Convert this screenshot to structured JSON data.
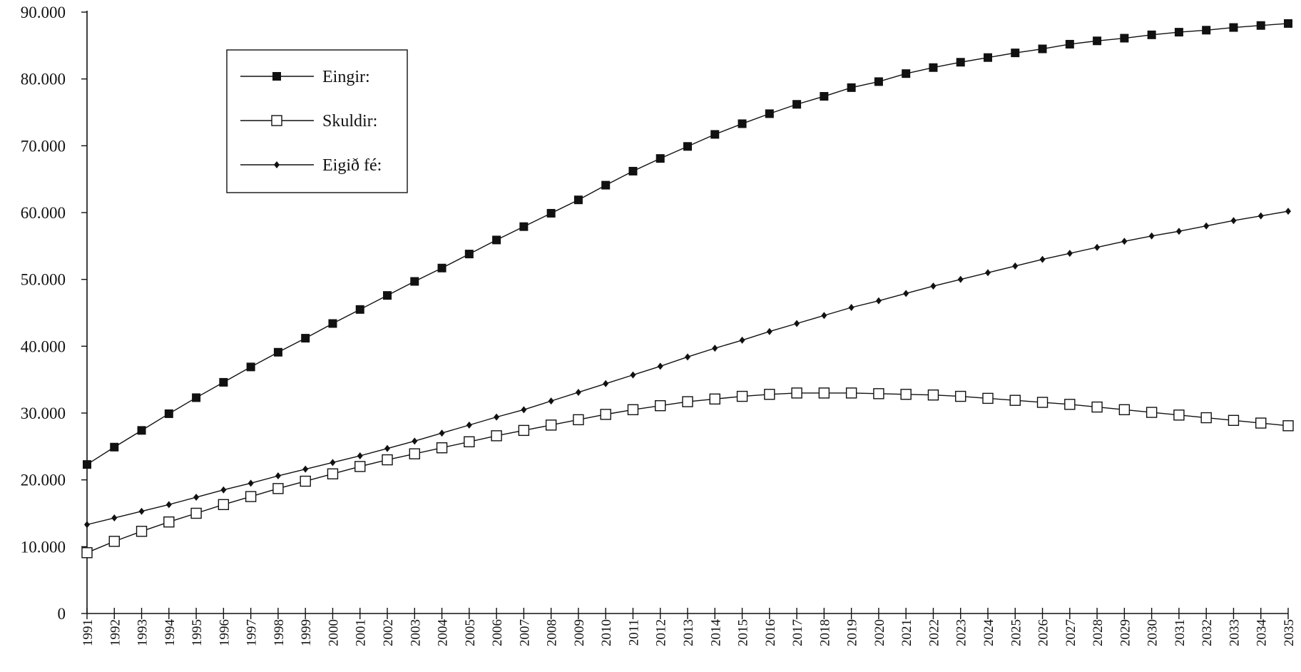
{
  "chart_data": {
    "type": "line",
    "x": [
      1991,
      1992,
      1993,
      1994,
      1995,
      1996,
      1997,
      1998,
      1999,
      2000,
      2001,
      2002,
      2003,
      2004,
      2005,
      2006,
      2007,
      2008,
      2009,
      2010,
      2011,
      2012,
      2013,
      2014,
      2015,
      2016,
      2017,
      2018,
      2019,
      2020,
      2021,
      2022,
      2023,
      2024,
      2025,
      2026,
      2027,
      2028,
      2029,
      2030,
      2031,
      2032,
      2033,
      2034,
      2035
    ],
    "ylim": [
      0,
      90000
    ],
    "y_ticks": [
      "0",
      "10.000",
      "20.000",
      "30.000",
      "40.000",
      "50.000",
      "60.000",
      "70.000",
      "80.000",
      "90.000"
    ],
    "y_tick_values": [
      0,
      10000,
      20000,
      30000,
      40000,
      50000,
      60000,
      70000,
      80000,
      90000
    ],
    "grid": false,
    "legend_position": "top-left",
    "series": [
      {
        "name": "Eingir:",
        "marker": "filled-square",
        "values": [
          22300,
          24900,
          27400,
          29900,
          32300,
          34600,
          36900,
          39100,
          41200,
          43400,
          45500,
          47600,
          49700,
          51700,
          53800,
          55900,
          57900,
          59900,
          61900,
          64100,
          66200,
          68100,
          69900,
          71700,
          73300,
          74800,
          76200,
          77400,
          78700,
          79600,
          80800,
          81700,
          82500,
          83200,
          83900,
          84500,
          85200,
          85700,
          86100,
          86600,
          87000,
          87300,
          87700,
          88000,
          88300
        ],
        "color": "#111111"
      },
      {
        "name": "Skuldir:",
        "marker": "open-square",
        "values": [
          9100,
          10800,
          12300,
          13700,
          15000,
          16300,
          17500,
          18700,
          19800,
          20900,
          22000,
          23000,
          23900,
          24800,
          25700,
          26600,
          27400,
          28200,
          29000,
          29800,
          30500,
          31100,
          31700,
          32100,
          32500,
          32800,
          33000,
          33000,
          33000,
          32900,
          32800,
          32700,
          32500,
          32200,
          31900,
          31600,
          31300,
          30900,
          30500,
          30100,
          29700,
          29300,
          28900,
          28500,
          28100
        ],
        "color": "#111111"
      },
      {
        "name": "Eigið fé:",
        "marker": "filled-diamond",
        "values": [
          13300,
          14300,
          15300,
          16300,
          17400,
          18500,
          19500,
          20600,
          21600,
          22600,
          23600,
          24700,
          25800,
          27000,
          28200,
          29400,
          30500,
          31800,
          33100,
          34400,
          35700,
          37000,
          38400,
          39700,
          40900,
          42200,
          43400,
          44600,
          45800,
          46800,
          47900,
          49000,
          50000,
          51000,
          52000,
          53000,
          53900,
          54800,
          55700,
          56500,
          57200,
          58000,
          58800,
          59500,
          60200
        ],
        "color": "#111111"
      }
    ]
  }
}
